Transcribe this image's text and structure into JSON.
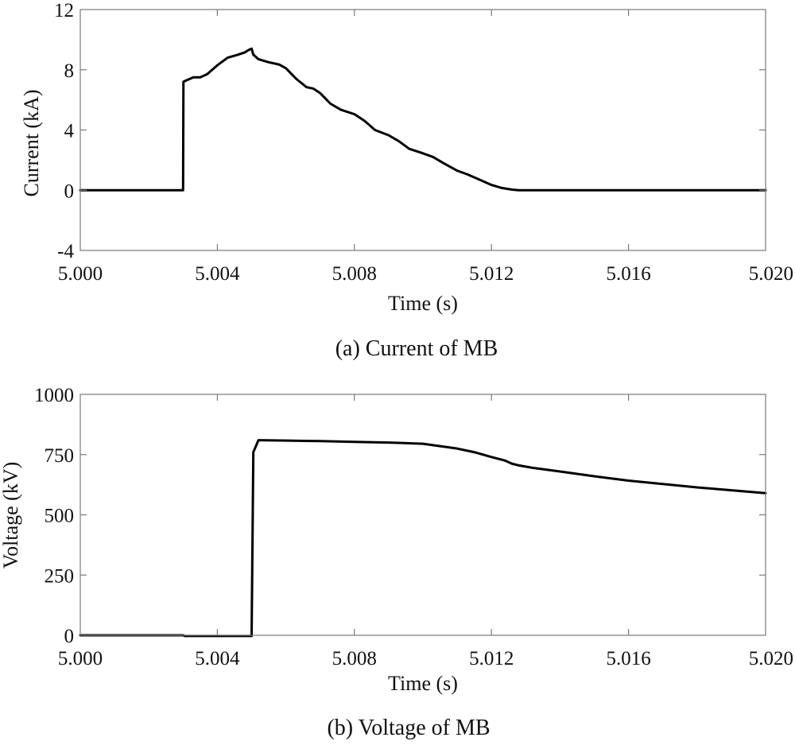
{
  "chart_data": [
    {
      "type": "line",
      "caption": "(a) Current of MB",
      "xlabel": "Time (s)",
      "ylabel": "Current (kA)",
      "xlim": [
        5.0,
        5.02
      ],
      "ylim": [
        -4,
        12
      ],
      "xticks": [
        5.0,
        5.004,
        5.008,
        5.012,
        5.016,
        5.02
      ],
      "xtick_labels": [
        "5.000",
        "5.004",
        "5.008",
        "5.012",
        "5.016",
        "5.020"
      ],
      "yticks": [
        -4,
        0,
        4,
        8,
        12
      ],
      "ytick_labels": [
        "-4",
        "0",
        "4",
        "8",
        "12"
      ],
      "grid": false,
      "series": [
        {
          "name": "Current of MB",
          "color": "#000000",
          "x": [
            5.0,
            5.003,
            5.00301,
            5.0031,
            5.0033,
            5.0035,
            5.0037,
            5.004,
            5.0043,
            5.0046,
            5.0048,
            5.0049,
            5.005,
            5.00505,
            5.0052,
            5.0055,
            5.0058,
            5.006,
            5.0063,
            5.0066,
            5.0068,
            5.007,
            5.0073,
            5.0076,
            5.008,
            5.0083,
            5.0086,
            5.009,
            5.0093,
            5.0096,
            5.01,
            5.0103,
            5.0106,
            5.011,
            5.0113,
            5.0116,
            5.012,
            5.0123,
            5.0126,
            5.0128,
            5.016,
            5.02
          ],
          "y": [
            0,
            0,
            7.2,
            7.3,
            7.5,
            7.5,
            7.7,
            8.3,
            8.8,
            9.0,
            9.15,
            9.3,
            9.4,
            9.0,
            8.7,
            8.5,
            8.35,
            8.1,
            7.4,
            6.85,
            6.75,
            6.45,
            5.75,
            5.35,
            5.05,
            4.6,
            4.0,
            3.65,
            3.25,
            2.75,
            2.45,
            2.2,
            1.8,
            1.3,
            1.05,
            0.75,
            0.35,
            0.15,
            0.04,
            0,
            0,
            0
          ]
        }
      ]
    },
    {
      "type": "line",
      "caption": "(b) Voltage of MB",
      "xlabel": "Time (s)",
      "ylabel": "Voltage (kV)",
      "xlim": [
        5.0,
        5.02
      ],
      "ylim": [
        0,
        1000
      ],
      "xticks": [
        5.0,
        5.004,
        5.008,
        5.012,
        5.016,
        5.02
      ],
      "xtick_labels": [
        "5.000",
        "5.004",
        "5.008",
        "5.012",
        "5.016",
        "5.020"
      ],
      "yticks": [
        0,
        250,
        500,
        750,
        1000
      ],
      "ytick_labels": [
        "0",
        "250",
        "500",
        "750",
        "1000"
      ],
      "grid": false,
      "series": [
        {
          "name": "Voltage of MB",
          "color": "#000000",
          "x": [
            5.0,
            5.003,
            5.00305,
            5.005,
            5.00505,
            5.0052,
            5.006,
            5.007,
            5.008,
            5.009,
            5.01,
            5.0105,
            5.011,
            5.0115,
            5.012,
            5.0124,
            5.0126,
            5.0128,
            5.0132,
            5.014,
            5.015,
            5.016,
            5.017,
            5.018,
            5.019,
            5.02
          ],
          "y": [
            0,
            0,
            -3,
            -3,
            760,
            810,
            808,
            806,
            803,
            800,
            795,
            785,
            775,
            760,
            740,
            725,
            712,
            705,
            695,
            680,
            660,
            642,
            628,
            614,
            602,
            590
          ]
        }
      ]
    }
  ]
}
